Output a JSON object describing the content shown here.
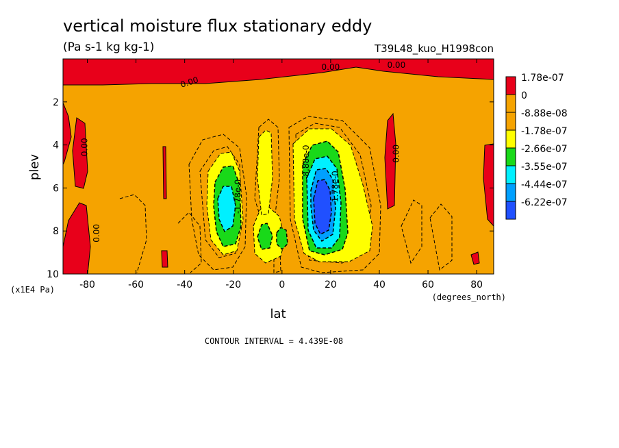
{
  "chart_data": {
    "type": "heatmap",
    "title": "vertical moisture flux stationary eddy",
    "subtitle": "(Pa s-1 kg kg-1)",
    "run_label": "T39L48_kuo_H1998con",
    "xlabel": "lat",
    "x_units": "(degrees_north)",
    "ylabel": "plev",
    "y_units": "(x1E4 Pa)",
    "xlim": [
      -90,
      87
    ],
    "ylim": [
      10,
      0
    ],
    "x_ticks": [
      -80,
      -60,
      -40,
      -20,
      0,
      20,
      40,
      60,
      80
    ],
    "y_ticks": [
      2,
      4,
      6,
      8,
      10
    ],
    "contour_interval_text": "CONTOUR INTERVAL = 4.439E-08",
    "legend": {
      "placement": "right",
      "levels": [
        {
          "label": "1.78e-07",
          "color": "#e8001a"
        },
        {
          "label": "0",
          "color": "#f5a300"
        },
        {
          "label": "-8.88e-08",
          "color": "#f5a300"
        },
        {
          "label": "-1.78e-07",
          "color": "#ffff00"
        },
        {
          "label": "-2.66e-07",
          "color": "#19d919"
        },
        {
          "label": "-3.55e-07",
          "color": "#00f0ff"
        },
        {
          "label": "-4.44e-07",
          "color": "#00a0ff"
        },
        {
          "label": "-6.22e-07",
          "color": "#2050ff"
        }
      ]
    },
    "contour_labels": [
      {
        "text": "0.00",
        "lat": -81,
        "plev": 4.1,
        "rotate": -90
      },
      {
        "text": "0.00",
        "lat": -76,
        "plev": 8.1,
        "rotate": -90
      },
      {
        "text": "0.00",
        "lat": -38,
        "plev": 1.1,
        "rotate": -18
      },
      {
        "text": "0.00",
        "lat": 20,
        "plev": 0.4,
        "rotate": 0
      },
      {
        "text": "0.00",
        "lat": 47,
        "plev": 0.3,
        "rotate": 0
      },
      {
        "text": "0.00",
        "lat": 47,
        "plev": 4.4,
        "rotate": -90
      },
      {
        "text": "-1.78e-0",
        "lat": -18,
        "plev": 6.4,
        "rotate": -90
      },
      {
        "text": "-8.88e-0",
        "lat": 10,
        "plev": 4.8,
        "rotate": -90
      },
      {
        "text": "-1.78e-0",
        "lat": 22,
        "plev": 6.0,
        "rotate": -90
      }
    ]
  }
}
